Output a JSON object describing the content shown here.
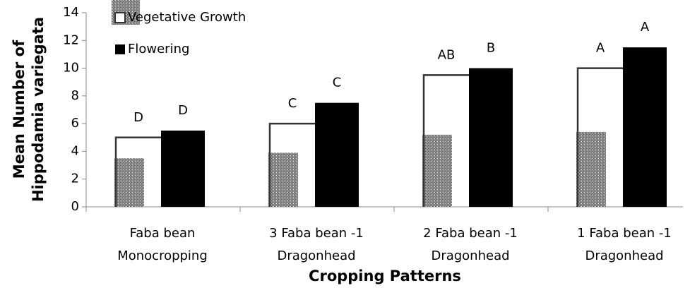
{
  "chart_data": {
    "type": "bar",
    "ylabel": [
      "Mean Number of",
      "Hippodamia variegata"
    ],
    "xlabel": "Cropping Patterns",
    "categories": [
      [
        "Faba bean",
        "Monocropping"
      ],
      [
        "3 Faba bean -1",
        "Dragonhead"
      ],
      [
        "2 Faba bean -1",
        "Dragonhead"
      ],
      [
        "1 Faba bean -1",
        "Dragonhead"
      ]
    ],
    "series": [
      {
        "color": "#8c8c8c",
        "style": "speckled",
        "values": [
          3.5,
          3.9,
          5.2,
          5.4
        ]
      },
      {
        "name": "Vegetative Growth",
        "color": "#333333",
        "style": "outline",
        "values": [
          5,
          6,
          9.5,
          10
        ],
        "labels": [
          "D",
          "C",
          "AB",
          "A"
        ]
      },
      {
        "name": "Flowering",
        "color": "#000000",
        "style": "solid",
        "values": [
          5.5,
          7.5,
          10,
          11.5
        ],
        "labels": [
          "D",
          "C",
          "B",
          "A"
        ]
      }
    ],
    "ylim": [
      0,
      14
    ],
    "yticks": [
      0,
      2,
      4,
      6,
      8,
      10,
      12,
      14
    ]
  }
}
